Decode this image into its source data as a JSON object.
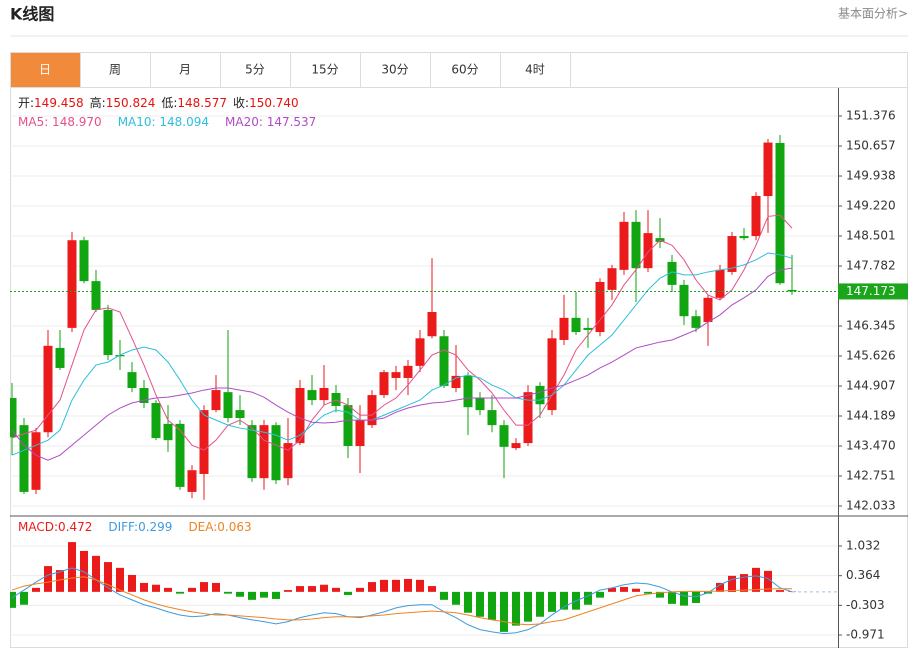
{
  "header": {
    "title": "K线图",
    "link": "基本面分析>"
  },
  "tabs": [
    "日",
    "周",
    "月",
    "5分",
    "15分",
    "30分",
    "60分",
    "4时"
  ],
  "active_tab": 0,
  "chart_data": [
    {
      "type": "candlestick",
      "info": [
        {
          "label": "开:",
          "value": "149.458"
        },
        {
          "label": "高:",
          "value": "150.824"
        },
        {
          "label": "低:",
          "value": "148.577"
        },
        {
          "label": "收:",
          "value": "150.740"
        }
      ],
      "info_value_color": "#e8110f",
      "up_color": "#ec1b1b",
      "down_color": "#11a511",
      "open": [
        144.62,
        143.97,
        142.42,
        143.8,
        145.82,
        146.3,
        148.4,
        147.42,
        146.73,
        145.65,
        145.24,
        144.86,
        144.5,
        144.0,
        144.0,
        142.37,
        142.8,
        144.33,
        144.76,
        144.33,
        143.97,
        142.7,
        143.97,
        142.7,
        143.54,
        144.81,
        144.57,
        144.74,
        144.45,
        143.47,
        143.97,
        144.69,
        145.1,
        145.1,
        145.39,
        146.1,
        146.1,
        144.86,
        145.15,
        144.62,
        144.33,
        143.97,
        143.42,
        143.54,
        144.91,
        144.33,
        146.01,
        146.54,
        146.3,
        146.2,
        147.21,
        147.69,
        148.84,
        147.73,
        148.45,
        147.88,
        147.33,
        146.58,
        146.44,
        147.02,
        147.64,
        148.5,
        148.5,
        149.458,
        150.73,
        147.21
      ],
      "high": [
        144.98,
        144.14,
        143.9,
        146.25,
        146.25,
        148.6,
        148.48,
        147.69,
        146.85,
        146.01,
        145.48,
        145.05,
        144.57,
        144.45,
        144.09,
        143.01,
        144.45,
        145.17,
        146.25,
        144.69,
        144.09,
        144.09,
        144.04,
        144.14,
        145.05,
        145.17,
        145.41,
        144.93,
        144.62,
        144.45,
        144.81,
        145.29,
        145.39,
        145.53,
        146.25,
        147.97,
        146.25,
        145.89,
        145.24,
        144.76,
        144.69,
        144.09,
        143.66,
        144.93,
        145.0,
        146.25,
        147.09,
        147.16,
        146.54,
        147.49,
        147.81,
        149.08,
        149.12,
        149.12,
        148.93,
        148.05,
        147.45,
        146.73,
        147.09,
        147.81,
        148.6,
        148.69,
        149.55,
        150.824,
        150.92,
        148.05
      ],
      "low": [
        143.25,
        142.32,
        142.32,
        143.68,
        145.29,
        146.2,
        147.37,
        146.68,
        145.53,
        145.29,
        144.76,
        144.38,
        143.61,
        143.33,
        142.42,
        142.22,
        142.18,
        144.28,
        144.04,
        143.97,
        142.61,
        142.42,
        142.56,
        142.53,
        143.49,
        144.45,
        144.45,
        144.28,
        143.18,
        142.82,
        143.9,
        144.62,
        144.81,
        144.69,
        145.24,
        146.05,
        144.86,
        144.76,
        143.73,
        144.21,
        143.8,
        142.7,
        143.37,
        143.47,
        144.14,
        144.21,
        145.89,
        146.13,
        145.82,
        146.1,
        146.97,
        147.57,
        146.92,
        147.64,
        148.21,
        147.16,
        146.37,
        146.2,
        145.87,
        146.97,
        147.57,
        148.4,
        148.4,
        148.577,
        147.33,
        147.09
      ],
      "close": [
        143.68,
        142.37,
        143.8,
        145.87,
        145.34,
        148.4,
        147.42,
        146.73,
        145.65,
        145.62,
        144.86,
        144.5,
        143.66,
        143.61,
        142.49,
        142.89,
        144.33,
        144.81,
        144.14,
        144.14,
        142.7,
        143.97,
        142.65,
        143.54,
        144.86,
        144.57,
        144.86,
        144.43,
        143.47,
        144.09,
        144.69,
        145.24,
        145.24,
        145.39,
        146.05,
        146.68,
        144.91,
        145.15,
        144.4,
        144.33,
        143.97,
        143.45,
        143.54,
        144.76,
        144.47,
        146.05,
        146.54,
        146.2,
        146.25,
        147.4,
        147.73,
        148.84,
        147.73,
        148.57,
        148.36,
        147.33,
        146.58,
        146.3,
        147.02,
        147.69,
        148.5,
        148.45,
        149.46,
        150.74,
        147.37,
        147.173
      ],
      "series": [
        {
          "legend": "MA5: 148.970",
          "color": "#e6508c",
          "values": [
            143.66,
            143.76,
            143.85,
            144.21,
            144.57,
            145.41,
            146.25,
            146.73,
            146.78,
            146.68,
            146.05,
            145.41,
            144.69,
            144.09,
            143.85,
            143.49,
            143.37,
            143.61,
            143.97,
            144.09,
            143.9,
            143.61,
            143.49,
            143.37,
            143.61,
            144.09,
            144.45,
            144.57,
            144.45,
            144.21,
            144.21,
            144.45,
            144.62,
            144.93,
            145.29,
            145.65,
            145.77,
            145.65,
            145.29,
            145.05,
            144.74,
            144.33,
            143.97,
            143.97,
            144.21,
            144.69,
            145.17,
            145.77,
            146.13,
            146.49,
            146.85,
            147.33,
            147.69,
            148.12,
            148.4,
            148.28,
            147.93,
            147.45,
            147.09,
            146.97,
            147.21,
            147.69,
            148.28,
            148.97,
            149.0,
            148.69
          ]
        },
        {
          "legend": "MA10: 148.094",
          "color": "#2ebfdc",
          "values": [
            143.25,
            143.37,
            143.49,
            143.61,
            143.85,
            144.57,
            145.05,
            145.41,
            145.48,
            145.65,
            145.77,
            145.84,
            145.77,
            145.48,
            145.05,
            144.57,
            144.21,
            144.09,
            143.97,
            143.9,
            143.85,
            143.8,
            143.73,
            143.61,
            143.73,
            143.97,
            144.21,
            144.33,
            144.28,
            144.09,
            144.09,
            144.21,
            144.33,
            144.45,
            144.57,
            144.81,
            144.93,
            145.1,
            145.17,
            145.1,
            144.93,
            144.81,
            144.62,
            144.57,
            144.57,
            144.69,
            144.93,
            145.29,
            145.65,
            145.89,
            146.13,
            146.49,
            146.85,
            147.21,
            147.49,
            147.64,
            147.57,
            147.57,
            147.64,
            147.69,
            147.73,
            147.81,
            147.93,
            148.094,
            148.05,
            147.97
          ]
        },
        {
          "legend": "MA20: 147.537",
          "color": "#b04cc6",
          "values": [
            143.85,
            143.49,
            143.25,
            143.13,
            143.25,
            143.49,
            143.73,
            143.97,
            144.21,
            144.38,
            144.5,
            144.57,
            144.62,
            144.64,
            144.69,
            144.74,
            144.81,
            144.86,
            144.86,
            144.81,
            144.76,
            144.64,
            144.45,
            144.28,
            144.14,
            144.04,
            144.02,
            144.04,
            144.09,
            144.09,
            144.09,
            144.14,
            144.28,
            144.38,
            144.45,
            144.5,
            144.52,
            144.57,
            144.62,
            144.62,
            144.62,
            144.62,
            144.62,
            144.69,
            144.76,
            144.86,
            144.93,
            145.05,
            145.17,
            145.34,
            145.48,
            145.65,
            145.82,
            145.89,
            145.96,
            146.01,
            146.13,
            146.25,
            146.44,
            146.61,
            146.85,
            147.02,
            147.21,
            147.537,
            147.69,
            147.73
          ]
        }
      ],
      "current_price": 147.173,
      "current_price_color": "#1aa51a",
      "ylim": [
        141.817,
        152.047
      ],
      "yticks": [
        142.033,
        142.751,
        {
          "value": 143.47,
          "label": "143.470"
        },
        144.189,
        144.907,
        145.626,
        146.345,
        147.782,
        148.501,
        {
          "value": 149.22,
          "label": "149.220"
        },
        149.938,
        150.657,
        151.376
      ],
      "grid": true
    },
    {
      "type": "macd",
      "bars": {
        "legend": "MACD:0.472",
        "up_color": "#ec1b1b",
        "down_color": "#11a511",
        "values": [
          -0.36,
          -0.29,
          0.09,
          0.58,
          0.49,
          1.12,
          0.92,
          0.81,
          0.67,
          0.54,
          0.38,
          0.2,
          0.16,
          0.09,
          -0.04,
          0.09,
          0.22,
          0.2,
          -0.04,
          -0.11,
          -0.18,
          -0.13,
          -0.16,
          0.04,
          0.13,
          0.13,
          0.16,
          0.09,
          -0.07,
          0.09,
          0.22,
          0.27,
          0.27,
          0.29,
          0.27,
          0.13,
          -0.18,
          -0.29,
          -0.47,
          -0.56,
          -0.63,
          -0.9,
          -0.76,
          -0.67,
          -0.56,
          -0.45,
          -0.4,
          -0.4,
          -0.29,
          -0.13,
          0.09,
          0.11,
          0.07,
          -0.04,
          -0.13,
          -0.27,
          -0.31,
          -0.25,
          -0.04,
          0.2,
          0.36,
          0.4,
          0.54,
          0.472,
          0.04,
          0.01
        ]
      },
      "series": [
        {
          "legend": "DIFF:0.299",
          "color": "#3f9be0",
          "values": [
            -0.13,
            0.04,
            0.22,
            0.38,
            0.45,
            0.54,
            0.45,
            0.27,
            0.09,
            -0.07,
            -0.18,
            -0.29,
            -0.36,
            -0.45,
            -0.52,
            -0.56,
            -0.54,
            -0.49,
            -0.52,
            -0.58,
            -0.63,
            -0.67,
            -0.72,
            -0.67,
            -0.58,
            -0.52,
            -0.47,
            -0.49,
            -0.56,
            -0.58,
            -0.52,
            -0.45,
            -0.36,
            -0.31,
            -0.29,
            -0.29,
            -0.45,
            -0.58,
            -0.74,
            -0.85,
            -0.9,
            -0.94,
            -0.92,
            -0.85,
            -0.72,
            -0.52,
            -0.34,
            -0.2,
            -0.09,
            0.04,
            0.09,
            0.16,
            0.2,
            0.18,
            0.11,
            0.0,
            -0.09,
            -0.11,
            -0.02,
            0.16,
            0.28,
            0.33,
            0.36,
            0.299,
            0.09,
            0.0
          ]
        },
        {
          "legend": "DEA:0.063",
          "color": "#ee8425",
          "values": [
            0.04,
            0.13,
            0.18,
            0.22,
            0.27,
            0.31,
            0.34,
            0.27,
            0.16,
            0.04,
            -0.07,
            -0.18,
            -0.27,
            -0.34,
            -0.4,
            -0.45,
            -0.49,
            -0.52,
            -0.52,
            -0.54,
            -0.56,
            -0.58,
            -0.61,
            -0.63,
            -0.63,
            -0.61,
            -0.58,
            -0.56,
            -0.56,
            -0.56,
            -0.54,
            -0.52,
            -0.49,
            -0.47,
            -0.45,
            -0.43,
            -0.45,
            -0.47,
            -0.52,
            -0.58,
            -0.63,
            -0.67,
            -0.72,
            -0.74,
            -0.72,
            -0.67,
            -0.63,
            -0.54,
            -0.45,
            -0.36,
            -0.27,
            -0.18,
            -0.09,
            -0.05,
            -0.02,
            0.0,
            0.01,
            0.01,
            0.01,
            0.02,
            0.03,
            0.04,
            0.05,
            0.063,
            0.07,
            0.07
          ]
        }
      ],
      "ylim": [
        -1.263,
        1.684
      ],
      "yticks": [
        -0.971,
        -0.303,
        0.364,
        1.032
      ],
      "grid": true
    }
  ]
}
